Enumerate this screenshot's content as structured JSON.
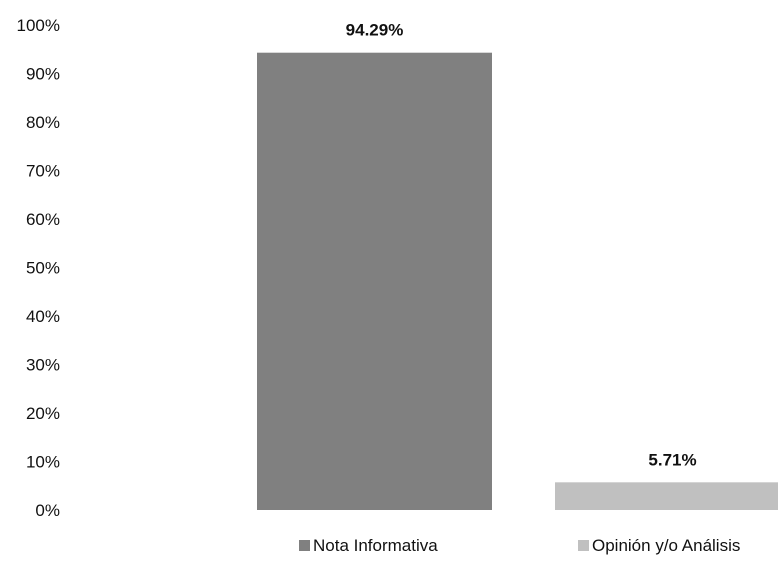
{
  "chart_data": {
    "type": "bar",
    "title": "",
    "xlabel": "",
    "ylabel": "",
    "categories": [
      "Nota Informativa",
      "Opinión y/o Análisis"
    ],
    "values": [
      94.29,
      5.71
    ],
    "data_labels": [
      "94.29%",
      "5.71%"
    ],
    "colors": [
      "#808080",
      "#c0c0c0"
    ],
    "ylim": [
      0,
      100
    ],
    "yticks": [
      "0%",
      "10%",
      "20%",
      "30%",
      "40%",
      "50%",
      "60%",
      "70%",
      "80%",
      "90%",
      "100%"
    ],
    "grid": false,
    "legend": {
      "placement": "bottom",
      "entries": [
        "Nota Informativa",
        "Opinión y/o Análisis"
      ]
    }
  }
}
